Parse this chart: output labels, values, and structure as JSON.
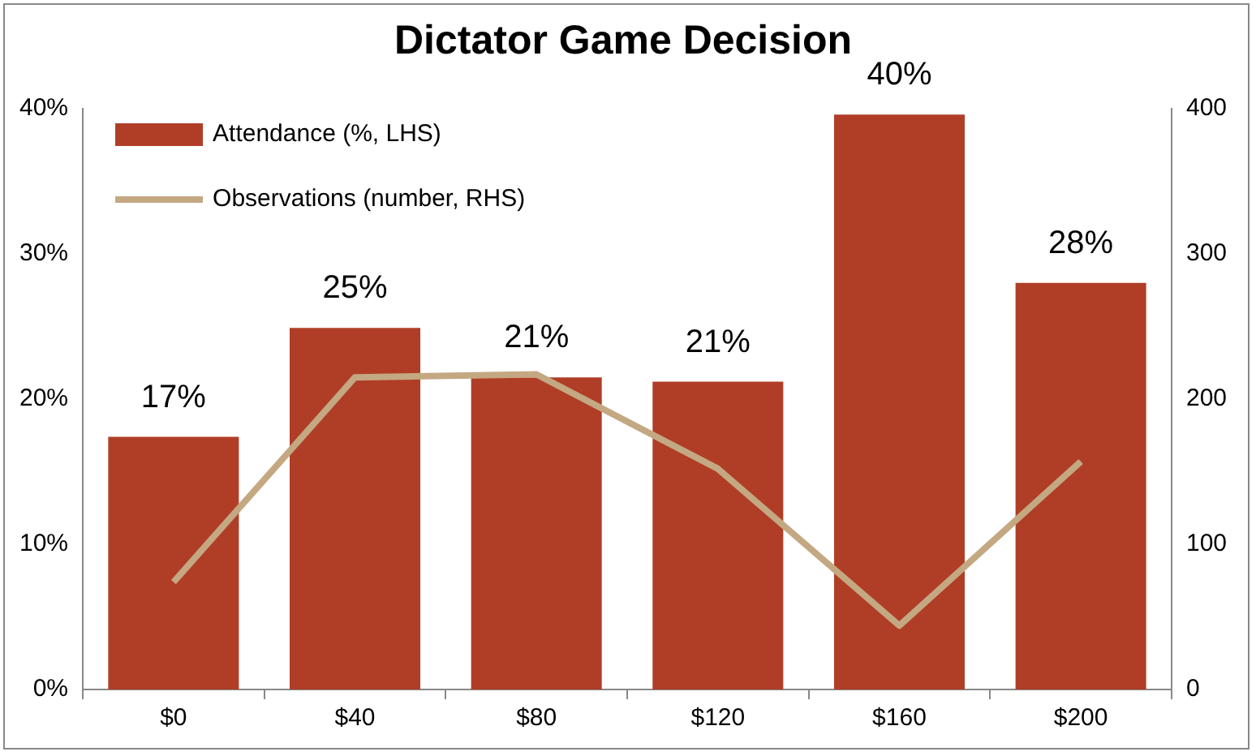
{
  "chart_data": {
    "type": "bar",
    "title": "Dictator Game Decision",
    "categories": [
      "$0",
      "$40",
      "$80",
      "$120",
      "$160",
      "$200"
    ],
    "series": [
      {
        "name": "Attendance (%, LHS)",
        "color": "#b03e27",
        "values": [
          17.4,
          24.9,
          21.5,
          21.2,
          39.6,
          28.0
        ],
        "value_labels": [
          "17%",
          "25%",
          "21%",
          "21%",
          "40%",
          "28%"
        ]
      },
      {
        "name": "Observations (number, RHS)",
        "type": "line",
        "axis": "y2",
        "color": "#c4a882",
        "values": [
          74,
          215,
          217,
          152,
          44,
          157
        ]
      }
    ],
    "ylim": [
      0,
      40
    ],
    "yticks": [
      {
        "value": 0,
        "label": "0%"
      },
      {
        "value": 10,
        "label": "10%"
      },
      {
        "value": 20,
        "label": "20%"
      },
      {
        "value": 30,
        "label": "30%"
      },
      {
        "value": 40,
        "label": "40%"
      }
    ],
    "y2lim": [
      0,
      400
    ],
    "y2ticks": [
      0,
      100,
      200,
      300,
      400
    ],
    "grid": false,
    "legend": "top left",
    "marker": "none",
    "line_style": "solid"
  }
}
